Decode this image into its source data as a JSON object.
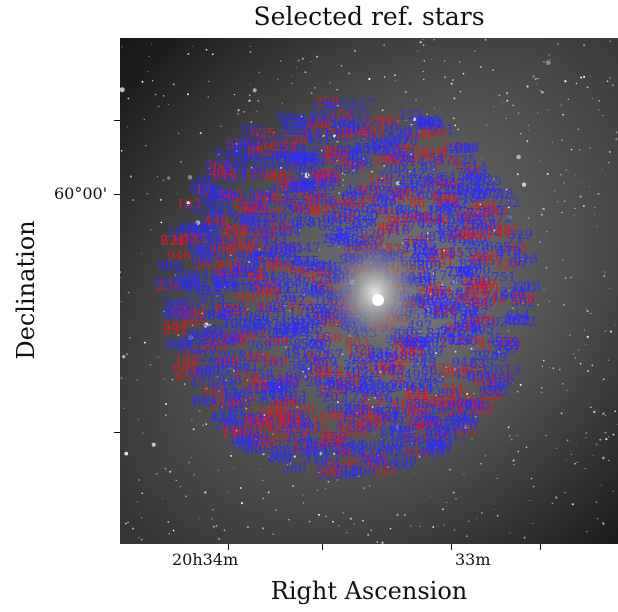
{
  "figure": {
    "title": "Selected ref. stars",
    "ylabel": "Declination",
    "xlabel": "Right Ascension",
    "yticks": [
      "60°00'"
    ],
    "xticks": [
      "20h34m",
      "33m"
    ]
  },
  "colors": {
    "background_sky": "#2a2a2a",
    "star_label_blue": "#2a2aff",
    "star_label_red": "#e01818"
  }
}
